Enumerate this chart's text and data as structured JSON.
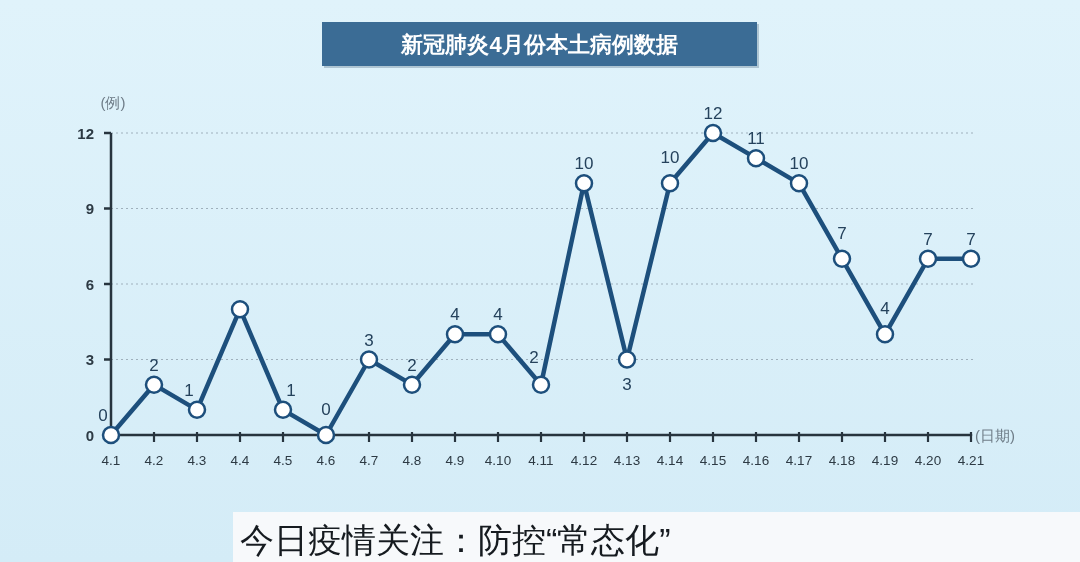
{
  "chart_data": {
    "type": "line",
    "title": "新冠肺炎4月份本土病例数据",
    "ylabel": "(例)",
    "xlabel": "(日期)",
    "categories": [
      "4.1",
      "4.2",
      "4.3",
      "4.4",
      "4.5",
      "4.6",
      "4.7",
      "4.8",
      "4.9",
      "4.10",
      "4.11",
      "4.12",
      "4.13",
      "4.14",
      "4.15",
      "4.16",
      "4.17",
      "4.18",
      "4.19",
      "4.20",
      "4.21"
    ],
    "series": [
      {
        "color": "#1d4f7c",
        "values": [
          0,
          2,
          1,
          5,
          1,
          0,
          3,
          2,
          4,
          4,
          2,
          10,
          3,
          10,
          12,
          11,
          10,
          7,
          4,
          7,
          7
        ],
        "value_labels": [
          "0",
          "2",
          "1",
          null,
          "1",
          "0",
          "3",
          "2",
          "4",
          "4",
          "2",
          "10",
          "3",
          "10",
          "12",
          "11",
          "10",
          "7",
          "4",
          "7",
          "7"
        ]
      }
    ],
    "ylim": [
      0,
      12
    ],
    "yticks": [
      0,
      3,
      6,
      9,
      12
    ],
    "grid": "y",
    "marker": "circle",
    "line_style": "solid",
    "annotations": [
      "今日疫情关注：防控“常态化”"
    ]
  }
}
